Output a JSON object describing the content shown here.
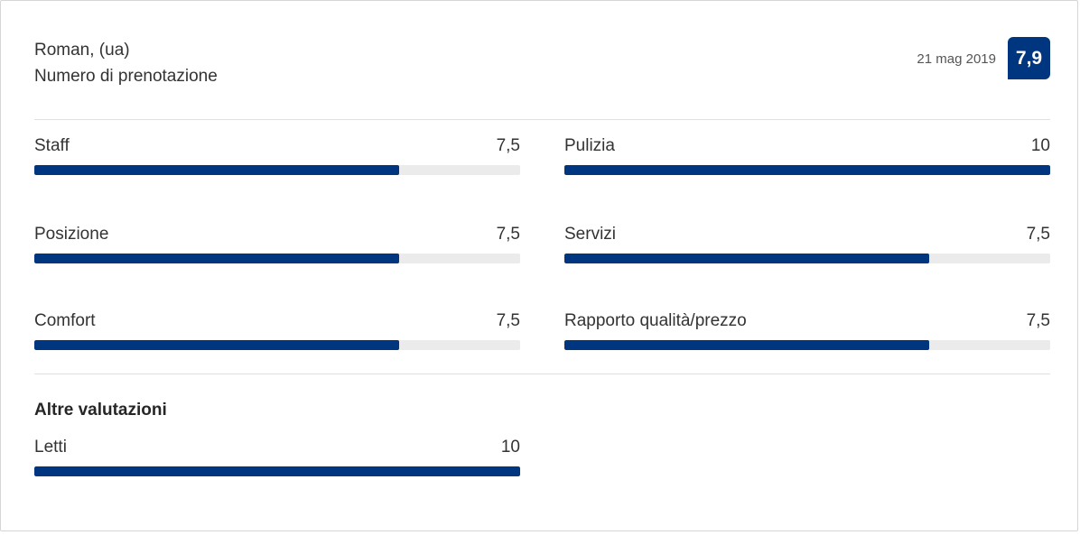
{
  "colors": {
    "accent": "#003580",
    "track": "#ebebeb"
  },
  "review": {
    "reviewer_name": "Roman, (ua)",
    "booking_label": "Numero di prenotazione",
    "date": "21 mag 2019",
    "score": "7,9"
  },
  "ratings": [
    {
      "label": "Staff",
      "value": "7,5",
      "fraction": 0.75
    },
    {
      "label": "Pulizia",
      "value": "10",
      "fraction": 1.0
    },
    {
      "label": "Posizione",
      "value": "7,5",
      "fraction": 0.75
    },
    {
      "label": "Servizi",
      "value": "7,5",
      "fraction": 0.75
    },
    {
      "label": "Comfort",
      "value": "7,5",
      "fraction": 0.75
    },
    {
      "label": "Rapporto qualità/prezzo",
      "value": "7,5",
      "fraction": 0.75
    }
  ],
  "other_ratings": {
    "title": "Altre valutazioni",
    "items": [
      {
        "label": "Letti",
        "value": "10",
        "fraction": 1.0
      }
    ]
  }
}
